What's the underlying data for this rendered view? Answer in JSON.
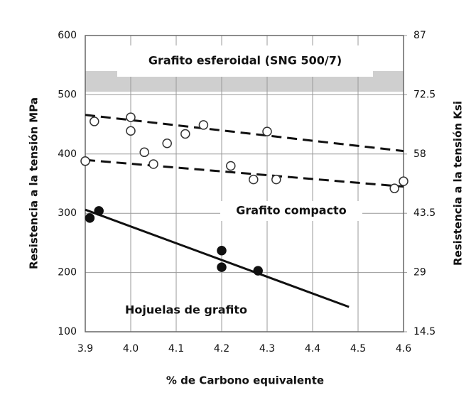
{
  "chart_data": {
    "type": "scatter",
    "xlabel": "% de Carbono equivalente",
    "ylabel": "Resistencia a la tensión MPa",
    "y2label": "Resistencia a la tensión Ksi",
    "xlim": [
      3.9,
      4.6
    ],
    "xticks": [
      3.9,
      4.0,
      4.1,
      4.2,
      4.3,
      4.4,
      4.5,
      4.6
    ],
    "ylim": [
      100,
      600
    ],
    "yticks": [
      100,
      200,
      300,
      400,
      500,
      600
    ],
    "y2lim": [
      14.5,
      87
    ],
    "y2ticks": [
      14.5,
      29,
      43.5,
      58,
      72.5,
      87
    ],
    "grid": true,
    "series": [
      {
        "marker": "open",
        "color": "#333333",
        "x": [
          3.9,
          3.92,
          4.0,
          4.0,
          4.03,
          4.05,
          4.08,
          4.12,
          4.16,
          4.22,
          4.27,
          4.3,
          4.32,
          4.58,
          4.6
        ],
        "values": [
          388,
          455,
          462,
          439,
          403,
          383,
          418,
          434,
          449,
          380,
          357,
          438,
          357,
          342,
          354
        ]
      },
      {
        "marker": "filled",
        "color": "#111111",
        "x": [
          3.91,
          3.93,
          4.2,
          4.2,
          4.28
        ],
        "values": [
          292,
          304,
          237,
          209,
          203
        ]
      }
    ],
    "trend_lines": [
      {
        "style": "dashed",
        "x": [
          3.9,
          4.6
        ],
        "values": [
          466,
          405
        ]
      },
      {
        "style": "dashed",
        "x": [
          3.9,
          4.6
        ],
        "values": [
          390,
          345
        ]
      },
      {
        "style": "solid",
        "x": [
          3.9,
          4.48
        ],
        "values": [
          306,
          142
        ]
      }
    ],
    "band": {
      "range": [
        505,
        540
      ],
      "color": "#cfcfcf"
    },
    "annotations": [
      "Grafito esferoidal (SNG 500/7)",
      "Grafito compacto",
      "Hojuelas de grafito"
    ]
  }
}
